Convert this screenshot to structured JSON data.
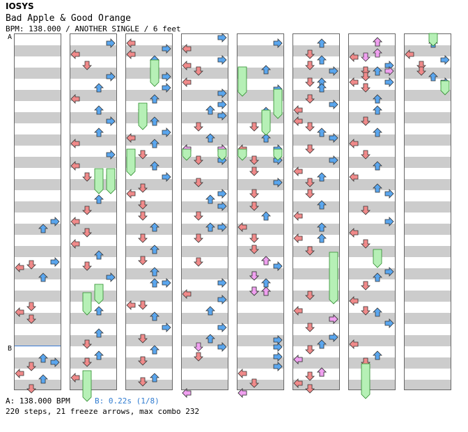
{
  "header": {
    "artist": "IOSYS",
    "title": "Bad Apple & Good Orange",
    "info": "BPM: 138.000 / ANOTHER SINGLE / 6 feet"
  },
  "markers": {
    "a": "A",
    "b": "B"
  },
  "legend": {
    "a": "A: 138.000 BPM",
    "b": "B: 0.22s (1/8)"
  },
  "stats": "220 steps, 21 freeze arrows, max combo 232",
  "colors": {
    "left": "#f08a8a",
    "down": "#f08a8a",
    "up": "#5aa6ee",
    "right": "#5aa6ee",
    "freeze": "#b6f0b6",
    "shock": "#f0a0f0"
  }
}
